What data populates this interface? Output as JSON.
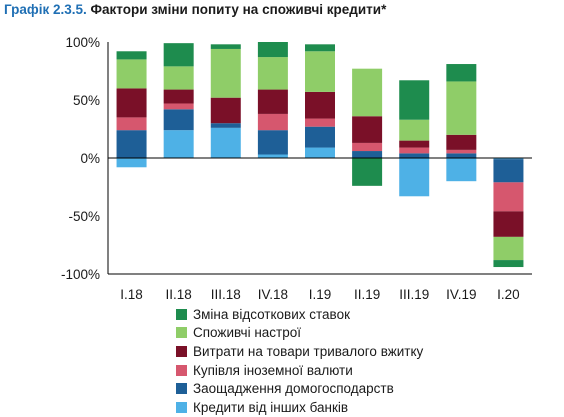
{
  "title": {
    "lead": "Графік 2.3.5.",
    "text": "Фактори зміни попиту на споживчі кредити*"
  },
  "chart_data": {
    "type": "bar",
    "stacked": true,
    "categories": [
      "I.18",
      "II.18",
      "III.18",
      "IV.18",
      "I.19",
      "II.19",
      "III.19",
      "IV.19",
      "I.20"
    ],
    "y_ticks": [
      "100%",
      "50%",
      "0%",
      "-50%",
      "-100%"
    ],
    "ylim": [
      -100,
      100
    ],
    "unit": "%",
    "grid": false,
    "legend_position": "bottom",
    "series": [
      {
        "name": "Кредити від інших банків",
        "color": "#4eb1e6",
        "values": [
          -8,
          24,
          26,
          3,
          9,
          0,
          -33,
          -20,
          -1
        ]
      },
      {
        "name": "Заощадження домогосподарств",
        "color": "#1e5f97",
        "values": [
          24,
          18,
          4,
          21,
          18,
          6,
          4,
          4,
          -20
        ]
      },
      {
        "name": "Купівля іноземної валюти",
        "color": "#d6576e",
        "values": [
          11,
          5,
          0,
          14,
          7,
          7,
          5,
          3,
          -25
        ]
      },
      {
        "name": "Витрати на товари тривалого вжитку",
        "color": "#7a1028",
        "values": [
          25,
          12,
          22,
          21,
          23,
          23,
          6,
          13,
          -22
        ]
      },
      {
        "name": "Споживчі настрої",
        "color": "#8fcd68",
        "values": [
          25,
          20,
          42,
          28,
          35,
          41,
          18,
          46,
          -20
        ]
      },
      {
        "name": "Зміна відсоткових ставок",
        "color": "#1e8c4e",
        "values": [
          7,
          20,
          4,
          13,
          6,
          -24,
          34,
          15,
          -6
        ]
      }
    ],
    "legend_order": [
      "Зміна відсоткових ставок",
      "Споживчі настрої",
      "Витрати на товари тривалого вжитку",
      "Купівля іноземної валюти",
      "Заощадження домогосподарств",
      "Кредити від інших банків"
    ]
  }
}
